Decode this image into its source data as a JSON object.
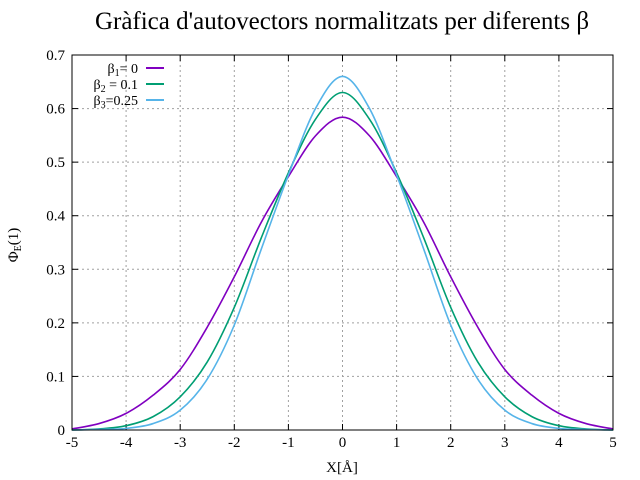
{
  "chart_data": {
    "type": "line",
    "title": "Gràfica d'autovectors normalitzats per diferents β",
    "xlabel": "X[Å]",
    "ylabel": "ΦE(1)",
    "ylabel_main": "Φ",
    "ylabel_sub": "E",
    "ylabel_tail": "(1)",
    "xlim": [
      -5,
      5
    ],
    "ylim": [
      0,
      0.7
    ],
    "xticks": [
      "-5",
      "-4",
      "-3",
      "-2",
      "-1",
      "0",
      "1",
      "2",
      "3",
      "4",
      "5"
    ],
    "yticks": [
      "0",
      "0.1",
      "0.2",
      "0.3",
      "0.4",
      "0.5",
      "0.6",
      "0.7"
    ],
    "grid": true,
    "legend_position": "top-left",
    "series": [
      {
        "name": "β1= 0",
        "label_main": "β",
        "label_sub": "1",
        "label_tail": "= 0",
        "color": "#8000c0",
        "x": [
          -5,
          -4.5,
          -4,
          -3.5,
          -3,
          -2.5,
          -2,
          -1.5,
          -1,
          -0.5,
          0,
          0.5,
          1,
          1.5,
          2,
          2.5,
          3,
          3.5,
          4,
          4.5,
          5
        ],
        "y": [
          0.002,
          0.012,
          0.031,
          0.065,
          0.113,
          0.192,
          0.286,
          0.388,
          0.473,
          0.549,
          0.584,
          0.549,
          0.473,
          0.388,
          0.286,
          0.192,
          0.113,
          0.065,
          0.031,
          0.012,
          0.002
        ]
      },
      {
        "name": "β2 = 0.1",
        "label_main": "β",
        "label_sub": "2",
        "label_tail": " = 0.1",
        "color": "#009e73",
        "x": [
          -5,
          -4.5,
          -4,
          -3.5,
          -3,
          -2.5,
          -2,
          -1.5,
          -1,
          -0.5,
          0,
          0.5,
          1,
          1.5,
          2,
          2.5,
          3,
          3.5,
          4,
          4.5,
          5
        ],
        "y": [
          0.0,
          0.002,
          0.008,
          0.025,
          0.062,
          0.127,
          0.229,
          0.359,
          0.48,
          0.58,
          0.63,
          0.58,
          0.48,
          0.359,
          0.229,
          0.127,
          0.062,
          0.025,
          0.008,
          0.002,
          0.0
        ]
      },
      {
        "name": "β3=0.25",
        "label_main": "β",
        "label_sub": "3",
        "label_tail": "=0.25",
        "color": "#56b4e9",
        "x": [
          -5,
          -4.5,
          -4,
          -3.5,
          -3,
          -2.5,
          -2,
          -1.5,
          -1,
          -0.5,
          0,
          0.5,
          1,
          1.5,
          2,
          2.5,
          3,
          3.5,
          4,
          4.5,
          5
        ],
        "y": [
          0.0,
          0.001,
          0.003,
          0.012,
          0.037,
          0.095,
          0.196,
          0.338,
          0.476,
          0.6,
          0.66,
          0.6,
          0.476,
          0.338,
          0.196,
          0.095,
          0.037,
          0.012,
          0.003,
          0.001,
          0.0
        ]
      }
    ]
  }
}
